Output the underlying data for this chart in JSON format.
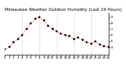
{
  "title": "Milwaukee Weather Outdoor Humidity (Last 24 Hours)",
  "background_color": "#ffffff",
  "line_color": "#ff0000",
  "marker_color": "#000000",
  "grid_color": "#aaaaaa",
  "ylim": [
    28,
    98
  ],
  "xlim": [
    0,
    24
  ],
  "x_values": [
    0,
    1,
    2,
    3,
    4,
    5,
    6,
    7,
    8,
    9,
    10,
    11,
    12,
    13,
    14,
    15,
    16,
    17,
    18,
    19,
    20,
    21,
    22,
    23,
    24
  ],
  "y_values": [
    36,
    40,
    48,
    54,
    60,
    70,
    80,
    87,
    90,
    84,
    76,
    70,
    66,
    63,
    60,
    58,
    54,
    56,
    52,
    48,
    46,
    50,
    44,
    42,
    40
  ],
  "ytick_labels": [
    "9",
    "8",
    "7",
    "6",
    "5",
    "4"
  ],
  "ytick_values": [
    90,
    80,
    70,
    60,
    50,
    40
  ],
  "xtick_values": [
    0,
    1,
    2,
    3,
    4,
    5,
    6,
    7,
    8,
    9,
    10,
    11,
    12,
    13,
    14,
    15,
    16,
    17,
    18,
    19,
    20,
    21,
    22,
    23,
    24
  ],
  "xtick_labels": [
    "0",
    "1",
    "2",
    "3",
    "4",
    "5",
    "6",
    "7",
    "8",
    "9",
    "10",
    "11",
    "12",
    "13",
    "14",
    "15",
    "16",
    "17",
    "18",
    "19",
    "20",
    "21",
    "22",
    "23",
    "24"
  ],
  "vgrid_positions": [
    4,
    8,
    12,
    16,
    20
  ],
  "title_fontsize": 4,
  "tick_fontsize": 3,
  "line_width": 0.7,
  "marker_size": 1.5
}
